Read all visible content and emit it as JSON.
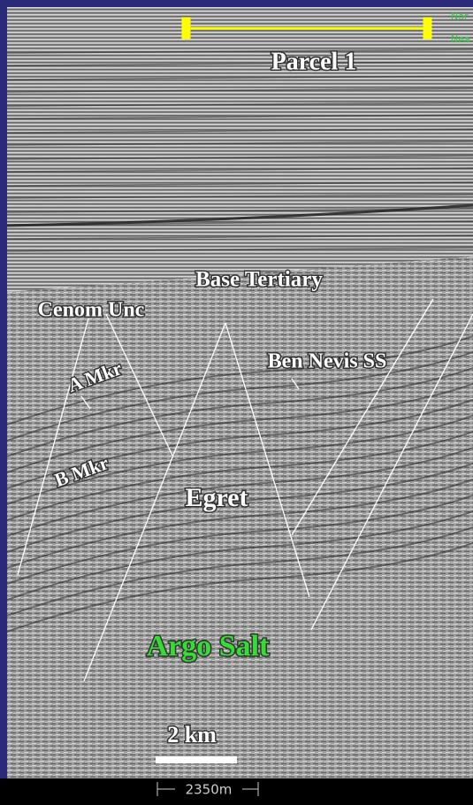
{
  "title": "Parcel 1",
  "corner_labels": [
    "Nor",
    "Nea"
  ],
  "horizons": [
    "Base Tertiary",
    "Cenom Unc",
    "A Mkr",
    "Ben Nevis SS",
    "B Mkr"
  ],
  "prospect": "Egret",
  "salt": "Argo Salt",
  "scale_bar": "2 km",
  "footer_scale": "2350m"
}
